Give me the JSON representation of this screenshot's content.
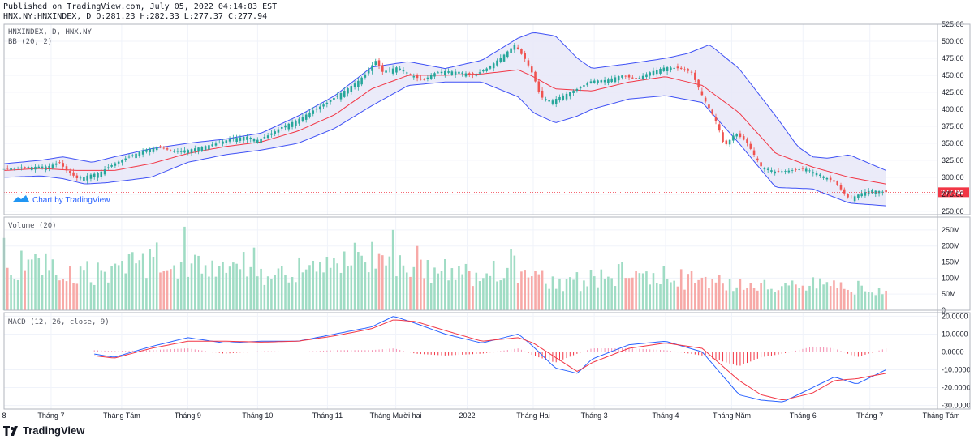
{
  "header": {
    "published": "Published on TradingView.com, July 05, 2022 04:14:03 EST",
    "ohlc": "HNX.NY:HNXINDEX, D O:281.23 H:282.33 L:277.37 C:277.94"
  },
  "watermark": "Chart by TradingView",
  "footer_logo": "TradingView",
  "colors": {
    "up": "#26a69a",
    "down": "#ef5350",
    "band": "#3f51f5",
    "basis": "#f23645",
    "band_fill": "#e8e8f8",
    "vol_up": "#9fdcc4",
    "vol_down": "#f7a9a7",
    "macd": "#2962ff",
    "signal": "#f23645",
    "last_price": "#f23645"
  },
  "chart_data": [
    {
      "type": "candlestick",
      "title": "HNXINDEX, D, HNX.NY",
      "indicator": "BB (20, 2)",
      "last_price_label": "277.94",
      "last_price": 277.94,
      "ylim": [
        245,
        525
      ],
      "yticks": [
        250,
        275,
        300,
        325,
        350,
        375,
        400,
        425,
        450,
        475,
        500,
        525
      ],
      "ytick_labels": [
        "250.00",
        "275.00",
        "300.00",
        "325.00",
        "350.00",
        "375.00",
        "400.00",
        "425.00",
        "450.00",
        "475.00",
        "500.00",
        "525.00"
      ],
      "xticks": [
        {
          "label": "8",
          "t": 0
        },
        {
          "label": "Tháng 7",
          "t": 0.064
        },
        {
          "label": "Tháng Tám",
          "t": 0.16
        },
        {
          "label": "Tháng 9",
          "t": 0.25
        },
        {
          "label": "Tháng 10",
          "t": 0.345
        },
        {
          "label": "Tháng 11",
          "t": 0.44
        },
        {
          "label": "Tháng Mười hai",
          "t": 0.533
        },
        {
          "label": "2022",
          "t": 0.63
        },
        {
          "label": "Tháng Hai",
          "t": 0.72
        },
        {
          "label": "Tháng 3",
          "t": 0.803
        },
        {
          "label": "Tháng 4",
          "t": 0.9
        },
        {
          "label": "Tháng Năm",
          "t": 0.99
        },
        {
          "label": "Tháng 6",
          "t": 1.087
        },
        {
          "label": "Tháng 7",
          "t": 1.178
        },
        {
          "label": "Tháng Tám",
          "t": 1.275
        }
      ],
      "close_path": [
        [
          0,
          312
        ],
        [
          0.03,
          315
        ],
        [
          0.06,
          316
        ],
        [
          0.075,
          322
        ],
        [
          0.085,
          310
        ],
        [
          0.1,
          298
        ],
        [
          0.115,
          303
        ],
        [
          0.13,
          307
        ],
        [
          0.15,
          320
        ],
        [
          0.17,
          330
        ],
        [
          0.19,
          340
        ],
        [
          0.21,
          345
        ],
        [
          0.23,
          338
        ],
        [
          0.25,
          340
        ],
        [
          0.27,
          345
        ],
        [
          0.29,
          350
        ],
        [
          0.31,
          357
        ],
        [
          0.33,
          360
        ],
        [
          0.345,
          355
        ],
        [
          0.36,
          362
        ],
        [
          0.38,
          375
        ],
        [
          0.4,
          385
        ],
        [
          0.42,
          398
        ],
        [
          0.44,
          410
        ],
        [
          0.46,
          425
        ],
        [
          0.48,
          440
        ],
        [
          0.495,
          455
        ],
        [
          0.505,
          472
        ],
        [
          0.515,
          455
        ],
        [
          0.535,
          462
        ],
        [
          0.555,
          450
        ],
        [
          0.57,
          442
        ],
        [
          0.585,
          453
        ],
        [
          0.6,
          456
        ],
        [
          0.62,
          455
        ],
        [
          0.64,
          450
        ],
        [
          0.66,
          462
        ],
        [
          0.68,
          480
        ],
        [
          0.695,
          495
        ],
        [
          0.71,
          472
        ],
        [
          0.72,
          450
        ],
        [
          0.73,
          418
        ],
        [
          0.745,
          412
        ],
        [
          0.76,
          420
        ],
        [
          0.78,
          430
        ],
        [
          0.8,
          442
        ],
        [
          0.82,
          443
        ],
        [
          0.84,
          450
        ],
        [
          0.86,
          444
        ],
        [
          0.88,
          455
        ],
        [
          0.9,
          462
        ],
        [
          0.92,
          460
        ],
        [
          0.935,
          455
        ],
        [
          0.95,
          420
        ],
        [
          0.97,
          380
        ],
        [
          0.98,
          345
        ],
        [
          0.995,
          365
        ],
        [
          1.01,
          352
        ],
        [
          1.03,
          316
        ],
        [
          1.05,
          308
        ],
        [
          1.07,
          310
        ],
        [
          1.09,
          313
        ],
        [
          1.1,
          308
        ],
        [
          1.11,
          304
        ],
        [
          1.13,
          293
        ],
        [
          1.15,
          268
        ],
        [
          1.165,
          276
        ],
        [
          1.18,
          281
        ],
        [
          1.2,
          278
        ]
      ],
      "bb_basis_path": [
        [
          0,
          310
        ],
        [
          0.05,
          313
        ],
        [
          0.1,
          310
        ],
        [
          0.15,
          310
        ],
        [
          0.2,
          320
        ],
        [
          0.25,
          335
        ],
        [
          0.3,
          345
        ],
        [
          0.35,
          352
        ],
        [
          0.4,
          368
        ],
        [
          0.45,
          392
        ],
        [
          0.5,
          430
        ],
        [
          0.55,
          450
        ],
        [
          0.6,
          450
        ],
        [
          0.65,
          452
        ],
        [
          0.7,
          458
        ],
        [
          0.72,
          448
        ],
        [
          0.75,
          430
        ],
        [
          0.8,
          427
        ],
        [
          0.85,
          440
        ],
        [
          0.9,
          448
        ],
        [
          0.95,
          435
        ],
        [
          1.0,
          395
        ],
        [
          1.05,
          335
        ],
        [
          1.1,
          315
        ],
        [
          1.15,
          300
        ],
        [
          1.2,
          290
        ]
      ],
      "bb_upper_path": [
        [
          0,
          320
        ],
        [
          0.05,
          325
        ],
        [
          0.08,
          330
        ],
        [
          0.12,
          322
        ],
        [
          0.15,
          330
        ],
        [
          0.2,
          342
        ],
        [
          0.25,
          350
        ],
        [
          0.3,
          356
        ],
        [
          0.35,
          365
        ],
        [
          0.4,
          390
        ],
        [
          0.45,
          420
        ],
        [
          0.5,
          462
        ],
        [
          0.55,
          470
        ],
        [
          0.6,
          460
        ],
        [
          0.65,
          472
        ],
        [
          0.7,
          505
        ],
        [
          0.72,
          513
        ],
        [
          0.75,
          508
        ],
        [
          0.78,
          475
        ],
        [
          0.8,
          460
        ],
        [
          0.85,
          467
        ],
        [
          0.9,
          475
        ],
        [
          0.93,
          482
        ],
        [
          0.96,
          495
        ],
        [
          1.0,
          460
        ],
        [
          1.05,
          390
        ],
        [
          1.08,
          345
        ],
        [
          1.1,
          330
        ],
        [
          1.12,
          328
        ],
        [
          1.15,
          333
        ],
        [
          1.2,
          310
        ]
      ],
      "bb_lower_path": [
        [
          0,
          300
        ],
        [
          0.05,
          302
        ],
        [
          0.08,
          298
        ],
        [
          0.11,
          290
        ],
        [
          0.14,
          292
        ],
        [
          0.2,
          300
        ],
        [
          0.25,
          322
        ],
        [
          0.3,
          333
        ],
        [
          0.35,
          340
        ],
        [
          0.4,
          350
        ],
        [
          0.45,
          372
        ],
        [
          0.5,
          405
        ],
        [
          0.55,
          435
        ],
        [
          0.6,
          440
        ],
        [
          0.65,
          440
        ],
        [
          0.7,
          418
        ],
        [
          0.72,
          395
        ],
        [
          0.75,
          380
        ],
        [
          0.78,
          390
        ],
        [
          0.8,
          400
        ],
        [
          0.85,
          415
        ],
        [
          0.9,
          420
        ],
        [
          0.95,
          410
        ],
        [
          1.0,
          350
        ],
        [
          1.05,
          285
        ],
        [
          1.1,
          283
        ],
        [
          1.15,
          262
        ],
        [
          1.2,
          258
        ]
      ]
    },
    {
      "type": "bar",
      "title": "Volume (20)",
      "ylim": [
        0,
        290
      ],
      "unit": "M",
      "yticks": [
        0,
        50,
        100,
        150,
        200,
        250
      ],
      "ytick_labels": [
        "0",
        "50M",
        "100M",
        "150M",
        "200M",
        "250M"
      ],
      "level_path": [
        [
          0,
          145
        ],
        [
          0.05,
          140
        ],
        [
          0.1,
          115
        ],
        [
          0.15,
          115
        ],
        [
          0.2,
          160
        ],
        [
          0.25,
          145
        ],
        [
          0.3,
          165
        ],
        [
          0.35,
          110
        ],
        [
          0.4,
          130
        ],
        [
          0.45,
          160
        ],
        [
          0.5,
          165
        ],
        [
          0.55,
          130
        ],
        [
          0.6,
          120
        ],
        [
          0.65,
          110
        ],
        [
          0.7,
          130
        ],
        [
          0.75,
          80
        ],
        [
          0.8,
          95
        ],
        [
          0.85,
          115
        ],
        [
          0.9,
          105
        ],
        [
          0.95,
          90
        ],
        [
          1.0,
          75
        ],
        [
          1.05,
          75
        ],
        [
          1.1,
          80
        ],
        [
          1.15,
          70
        ],
        [
          1.2,
          65
        ]
      ],
      "spikes": [
        {
          "t": 0,
          "value": 225
        },
        {
          "t": 0.245,
          "value": 260
        },
        {
          "t": 0.34,
          "value": 195
        },
        {
          "t": 0.475,
          "value": 210
        },
        {
          "t": 0.53,
          "value": 250
        },
        {
          "t": 0.69,
          "value": 190
        },
        {
          "t": 0.56,
          "value": 200
        }
      ]
    },
    {
      "type": "line",
      "title": "MACD (12, 26, close, 9)",
      "ylim": [
        -32,
        22
      ],
      "yticks": [
        20,
        10,
        0,
        -10,
        -20,
        -30
      ],
      "ytick_labels": [
        "20.0000",
        "10.0000",
        "0.0000",
        "-10.0000",
        "-20.0000",
        "-30.0000"
      ],
      "macd_path": [
        [
          0.12,
          -1
        ],
        [
          0.15,
          -3
        ],
        [
          0.2,
          3
        ],
        [
          0.25,
          8
        ],
        [
          0.3,
          5
        ],
        [
          0.35,
          6
        ],
        [
          0.4,
          6
        ],
        [
          0.45,
          10
        ],
        [
          0.5,
          14
        ],
        [
          0.53,
          20
        ],
        [
          0.56,
          16
        ],
        [
          0.6,
          10
        ],
        [
          0.65,
          5
        ],
        [
          0.7,
          10
        ],
        [
          0.72,
          3
        ],
        [
          0.75,
          -9
        ],
        [
          0.78,
          -12
        ],
        [
          0.8,
          -4
        ],
        [
          0.85,
          4
        ],
        [
          0.9,
          6
        ],
        [
          0.95,
          0
        ],
        [
          1.0,
          -24
        ],
        [
          1.03,
          -27
        ],
        [
          1.06,
          -28
        ],
        [
          1.1,
          -20
        ],
        [
          1.13,
          -14
        ],
        [
          1.16,
          -18
        ],
        [
          1.2,
          -10
        ]
      ],
      "signal_path": [
        [
          0.12,
          -2
        ],
        [
          0.15,
          -3.5
        ],
        [
          0.2,
          2
        ],
        [
          0.25,
          6
        ],
        [
          0.3,
          6
        ],
        [
          0.35,
          5.5
        ],
        [
          0.4,
          6
        ],
        [
          0.45,
          9
        ],
        [
          0.5,
          13
        ],
        [
          0.53,
          18
        ],
        [
          0.56,
          17
        ],
        [
          0.6,
          12
        ],
        [
          0.65,
          6
        ],
        [
          0.7,
          8
        ],
        [
          0.72,
          5
        ],
        [
          0.75,
          -3
        ],
        [
          0.78,
          -11
        ],
        [
          0.8,
          -6
        ],
        [
          0.85,
          2
        ],
        [
          0.9,
          5
        ],
        [
          0.95,
          2
        ],
        [
          1.0,
          -16
        ],
        [
          1.03,
          -24
        ],
        [
          1.06,
          -27
        ],
        [
          1.1,
          -23
        ],
        [
          1.13,
          -16
        ],
        [
          1.16,
          -15
        ],
        [
          1.2,
          -12
        ]
      ]
    }
  ]
}
